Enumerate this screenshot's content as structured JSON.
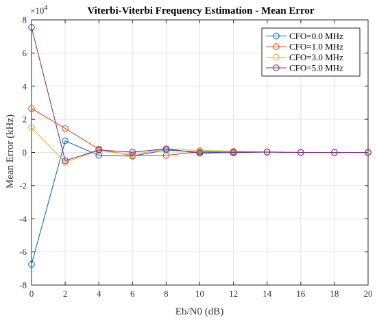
{
  "chart_data": {
    "type": "line",
    "title": "Viterbi-Viterbi Frequency Estimation - Mean Error",
    "xlabel": "Eb/N0 (dB)",
    "ylabel": "Mean Error (kHz)",
    "y_multiplier_base": "×10",
    "y_multiplier_exp": "4",
    "xlim": [
      0,
      20
    ],
    "ylim": [
      -8,
      8
    ],
    "x_ticks": [
      0,
      2,
      4,
      6,
      8,
      10,
      12,
      14,
      16,
      18,
      20
    ],
    "y_ticks": [
      -8,
      -6,
      -4,
      -2,
      0,
      2,
      4,
      6,
      8
    ],
    "grid": true,
    "legend_position": "top-right",
    "series": [
      {
        "name": "CFO=0.0 MHz",
        "color": "#0072BD",
        "x": [
          0,
          2,
          4,
          6,
          8,
          10,
          12,
          14,
          16,
          18,
          20
        ],
        "y": [
          -6.75,
          0.7,
          -0.17,
          -0.22,
          0.15,
          0.02,
          -0.02,
          0.03,
          0.0,
          0.0,
          0.0
        ]
      },
      {
        "name": "CFO=1.0 MHz",
        "color": "#D95319",
        "x": [
          0,
          2,
          4,
          6,
          8,
          10,
          12,
          14,
          16,
          18,
          20
        ],
        "y": [
          2.65,
          1.45,
          0.2,
          -0.2,
          -0.18,
          0.05,
          0.05,
          0.03,
          0.0,
          0.0,
          0.0
        ]
      },
      {
        "name": "CFO=3.0 MHz",
        "color": "#EDB120",
        "x": [
          0,
          2,
          4,
          6,
          8,
          10,
          12,
          14,
          16,
          18,
          20
        ],
        "y": [
          1.5,
          -0.6,
          0.12,
          -0.15,
          0.22,
          0.12,
          0.08,
          0.05,
          0.0,
          0.0,
          0.0
        ]
      },
      {
        "name": "CFO=5.0 MHz",
        "color": "#7E2F8E",
        "x": [
          0,
          2,
          4,
          6,
          8,
          10,
          12,
          14,
          16,
          18,
          20
        ],
        "y": [
          7.55,
          -0.5,
          0.15,
          0.02,
          0.22,
          -0.05,
          0.0,
          0.02,
          0.0,
          0.0,
          0.0
        ]
      }
    ]
  }
}
